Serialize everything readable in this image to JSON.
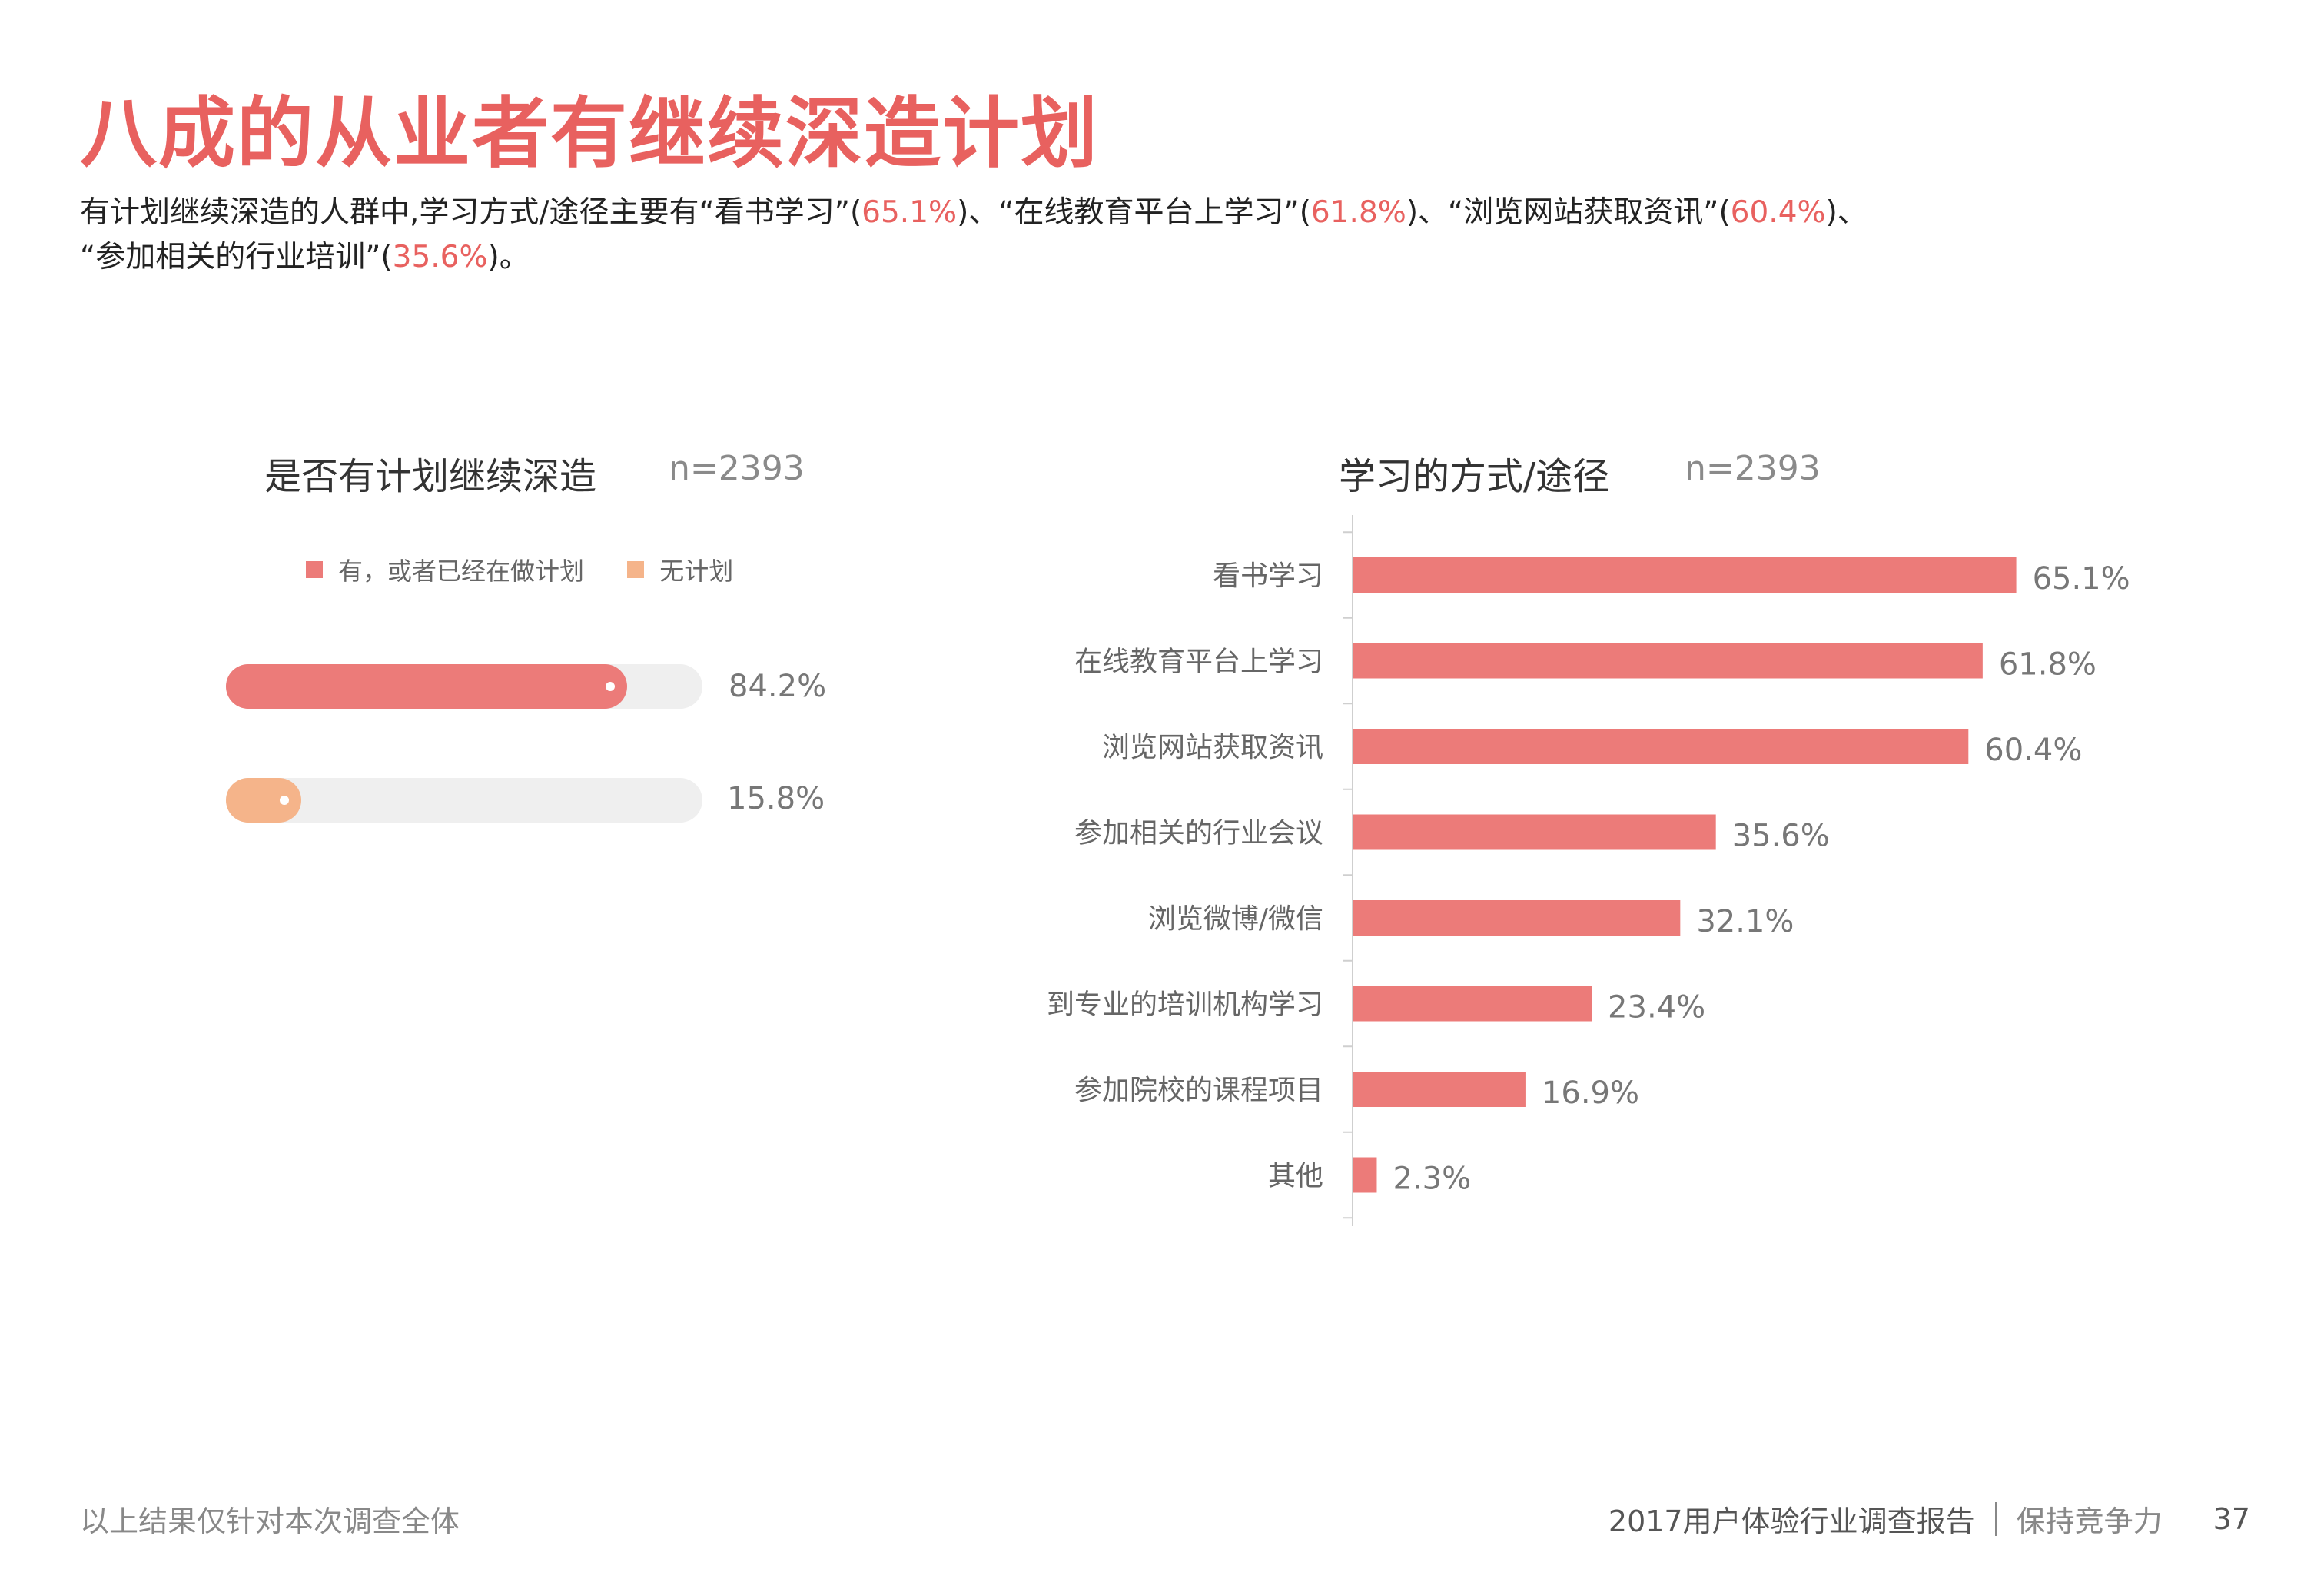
{
  "title": "八成的从业者有继续深造计划",
  "summary": {
    "line1_a": "有计划继续深造的人群中,学习方式/途径主要有“看书学习”(",
    "line1_b": "65.1%",
    "line1_c": ")、“在线教育平台上学习”(",
    "line1_d": "61.8%",
    "line1_e": ")、“浏览网站获取资讯”(",
    "line1_f": "60.4%",
    "line1_g": ")、",
    "line2_a": "“参加相关的行业培训”(",
    "line2_b": "35.6%",
    "line2_c": ")。"
  },
  "colors": {
    "accent": "#e8615f",
    "bar": "#ec7b79",
    "orange": "#f5b48a",
    "track": "#efefef"
  },
  "chart_data": [
    {
      "type": "bar",
      "orientation": "horizontal",
      "title": "是否有计划继续深造",
      "n_label": "n=2393",
      "legend": [
        "有，或者已经在做计划",
        "无计划"
      ],
      "categories": [
        "有，或者已经在做计划",
        "无计划"
      ],
      "values": [
        84.2,
        15.8
      ],
      "value_labels": [
        "84.2%",
        "15.8%"
      ],
      "xlim": [
        0,
        100
      ],
      "colors": [
        "#ec7b79",
        "#f5b48a"
      ]
    },
    {
      "type": "bar",
      "orientation": "horizontal",
      "title": "学习的方式/途径",
      "n_label": "n=2393",
      "categories": [
        "看书学习",
        "在线教育平台上学习",
        "浏览网站获取资讯",
        "参加相关的行业会议",
        "浏览微博/微信",
        "到专业的培训机构学习",
        "参加院校的课程项目",
        "其他"
      ],
      "values": [
        65.1,
        61.8,
        60.4,
        35.6,
        32.1,
        23.4,
        16.9,
        2.3
      ],
      "value_labels": [
        "65.1%",
        "61.8%",
        "60.4%",
        "35.6%",
        "32.1%",
        "23.4%",
        "16.9%",
        "2.3%"
      ],
      "xlim": [
        0,
        100
      ],
      "color": "#ec7b79"
    }
  ],
  "footer": {
    "note": "以上结果仅针对本次调查全体",
    "report": "2017用户体验行业调查报告",
    "section": "保持竞争力",
    "page": "37"
  }
}
